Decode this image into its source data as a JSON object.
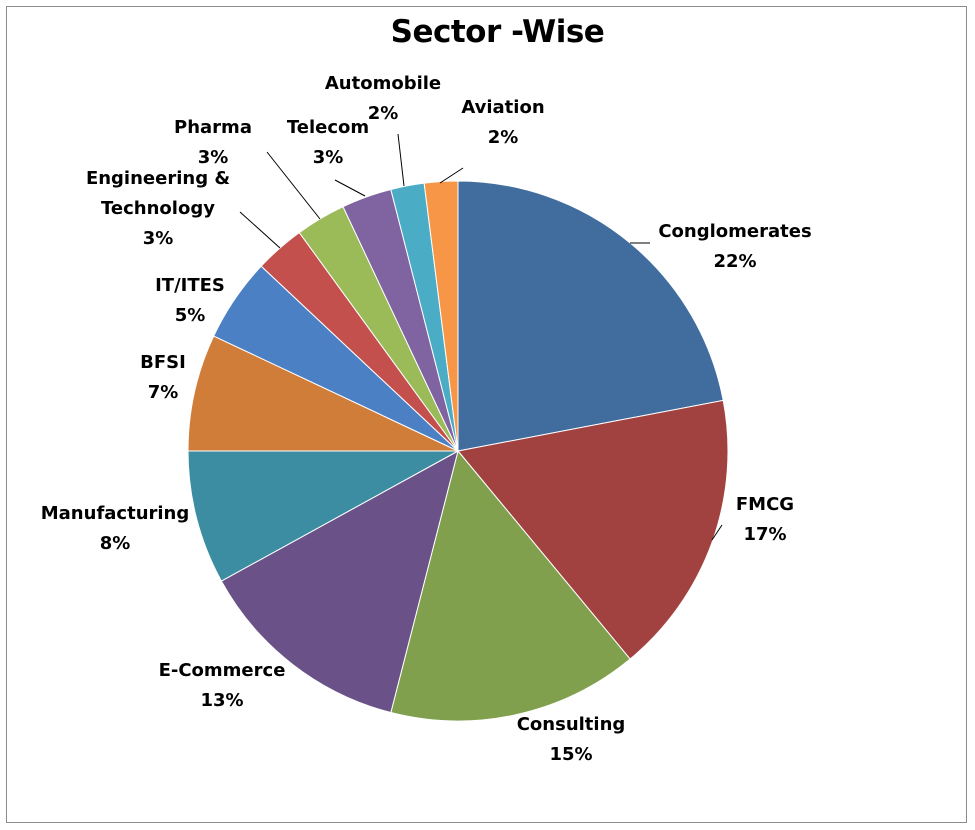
{
  "chart_data": {
    "type": "pie",
    "title": "Sector -Wise",
    "slices": [
      {
        "label": "Conglomerates",
        "value": 22,
        "pct_text": "22%",
        "color": "#416C9E"
      },
      {
        "label": "FMCG",
        "value": 17,
        "pct_text": "17%",
        "color": "#A24240"
      },
      {
        "label": "Consulting",
        "value": 15,
        "pct_text": "15%",
        "color": "#80A04E"
      },
      {
        "label": "E-Commerce",
        "value": 13,
        "pct_text": "13%",
        "color": "#6A5288"
      },
      {
        "label": "Manufacturing",
        "value": 8,
        "pct_text": "8%",
        "color": "#3C8DA2"
      },
      {
        "label": "BFSI",
        "value": 7,
        "pct_text": "7%",
        "color": "#D07D3A"
      },
      {
        "label": "IT/ITES",
        "value": 5,
        "pct_text": "5%",
        "color": "#4B80C4"
      },
      {
        "label": "Engineering &\nTechnology",
        "value": 3,
        "pct_text": "3%",
        "color": "#C4504D"
      },
      {
        "label": "Pharma",
        "value": 3,
        "pct_text": "3%",
        "color": "#9BBB59"
      },
      {
        "label": "Telecom",
        "value": 3,
        "pct_text": "3%",
        "color": "#8064A2"
      },
      {
        "label": "Automobile",
        "value": 2,
        "pct_text": "2%",
        "color": "#4BACC6"
      },
      {
        "label": "Aviation",
        "value": 2,
        "pct_text": "2%",
        "color": "#F79646"
      }
    ],
    "legend": "none"
  }
}
